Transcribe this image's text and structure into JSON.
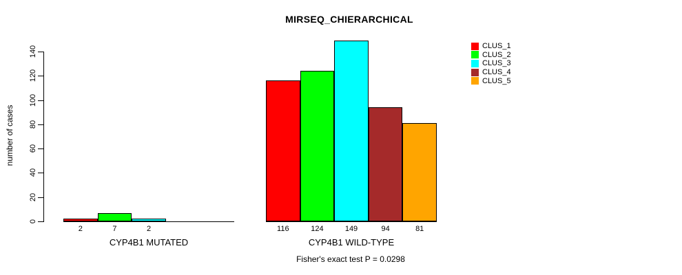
{
  "chart_data": {
    "type": "bar",
    "title": "MIRSEQ_CHIERARCHICAL",
    "ylabel": "number of cases",
    "ylim": [
      0,
      140
    ],
    "yticks": [
      0,
      20,
      40,
      60,
      80,
      100,
      120,
      140
    ],
    "grid": false,
    "legend_position": "top-right",
    "series": [
      {
        "name": "CLUS_1",
        "color": "#FF0000"
      },
      {
        "name": "CLUS_2",
        "color": "#00FF00"
      },
      {
        "name": "CLUS_3",
        "color": "#00FFFF"
      },
      {
        "name": "CLUS_4",
        "color": "#A52A2A"
      },
      {
        "name": "CLUS_5",
        "color": "#FFA500"
      }
    ],
    "groups": [
      {
        "label": "CYP4B1 MUTATED",
        "values": [
          2,
          7,
          2,
          0,
          0
        ],
        "bar_labels": [
          "2",
          "7",
          "2",
          "",
          ""
        ]
      },
      {
        "label": "CYP4B1 WILD-TYPE",
        "values": [
          116,
          124,
          149,
          94,
          81
        ],
        "bar_labels": [
          "116",
          "124",
          "149",
          "94",
          "81"
        ]
      }
    ],
    "caption": "Fisher's exact test P = 0.0298"
  }
}
